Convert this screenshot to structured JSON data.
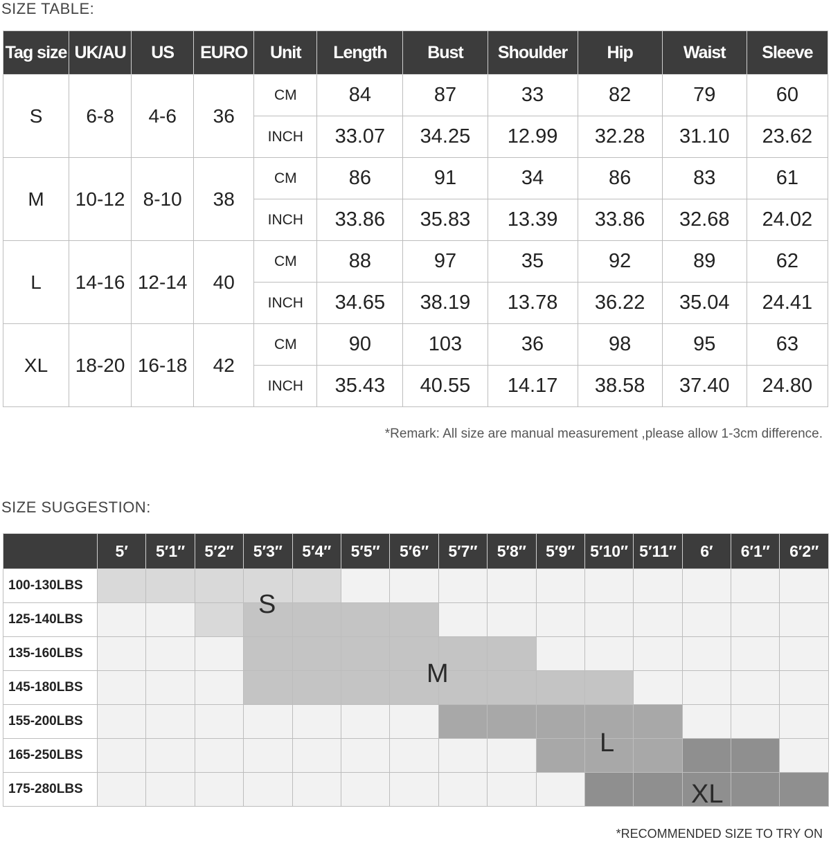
{
  "size_table": {
    "title": "SIZE TABLE:",
    "headers": [
      "Tag size",
      "UK/AU",
      "US",
      "EURO",
      "Unit",
      "Length",
      "Bust",
      "Shoulder",
      "Hip",
      "Waist",
      "Sleeve"
    ],
    "rows": [
      {
        "tag": "S",
        "ukau": "6-8",
        "us": "4-6",
        "euro": "36",
        "cm": [
          "84",
          "87",
          "33",
          "82",
          "79",
          "60"
        ],
        "inch": [
          "33.07",
          "34.25",
          "12.99",
          "32.28",
          "31.10",
          "23.62"
        ]
      },
      {
        "tag": "M",
        "ukau": "10-12",
        "us": "8-10",
        "euro": "38",
        "cm": [
          "86",
          "91",
          "34",
          "86",
          "83",
          "61"
        ],
        "inch": [
          "33.86",
          "35.83",
          "13.39",
          "33.86",
          "32.68",
          "24.02"
        ]
      },
      {
        "tag": "L",
        "ukau": "14-16",
        "us": "12-14",
        "euro": "40",
        "cm": [
          "88",
          "97",
          "35",
          "92",
          "89",
          "62"
        ],
        "inch": [
          "34.65",
          "38.19",
          "13.78",
          "36.22",
          "35.04",
          "24.41"
        ]
      },
      {
        "tag": "XL",
        "ukau": "18-20",
        "us": "16-18",
        "euro": "42",
        "cm": [
          "90",
          "103",
          "36",
          "98",
          "95",
          "63"
        ],
        "inch": [
          "35.43",
          "40.55",
          "14.17",
          "38.58",
          "37.40",
          "24.80"
        ]
      }
    ],
    "unit_cm": "CM",
    "unit_inch": "INCH",
    "remark": "*Remark: All size are manual measurement ,please allow 1-3cm difference."
  },
  "size_suggestion": {
    "title": "SIZE SUGGESTION:",
    "heights": [
      "5′",
      "5′1″",
      "5′2″",
      "5′3″",
      "5′4″",
      "5′5″",
      "5′6″",
      "5′7″",
      "5′8″",
      "5′9″",
      "5′10″",
      "5′11″",
      "6′",
      "6′1″",
      "6′2″"
    ],
    "weights": [
      "100-130LBS",
      "125-140LBS",
      "135-160LBS",
      "145-180LBS",
      "155-200LBS",
      "165-250LBS",
      "175-280LBS"
    ],
    "grid": [
      [
        "S",
        "S",
        "S",
        "S",
        "S",
        "",
        "",
        "",
        "",
        "",
        "",
        "",
        "",
        "",
        ""
      ],
      [
        "",
        "",
        "S",
        "M",
        "M",
        "M",
        "M",
        "",
        "",
        "",
        "",
        "",
        "",
        "",
        ""
      ],
      [
        "",
        "",
        "",
        "M",
        "M",
        "M",
        "M",
        "M",
        "M",
        "",
        "",
        "",
        "",
        "",
        ""
      ],
      [
        "",
        "",
        "",
        "M",
        "M",
        "M",
        "M",
        "M",
        "M",
        "M",
        "M",
        "",
        "",
        "",
        ""
      ],
      [
        "",
        "",
        "",
        "",
        "",
        "",
        "",
        "L",
        "L",
        "L",
        "L",
        "L",
        "",
        "",
        ""
      ],
      [
        "",
        "",
        "",
        "",
        "",
        "",
        "",
        "",
        "",
        "L",
        "L",
        "L",
        "XL",
        "XL",
        ""
      ],
      [
        "",
        "",
        "",
        "",
        "",
        "",
        "",
        "",
        "",
        "",
        "XL",
        "XL",
        "XL",
        "XL",
        "XL"
      ]
    ],
    "size_labels": {
      "s": "S",
      "m": "M",
      "l": "L",
      "xl": "XL"
    },
    "colors": {
      "S": "#d9d9d9",
      "M": "#c4c4c4",
      "L": "#a8a8a8",
      "XL": "#8f8f8f",
      "empty": "#f2f2f2",
      "header": "#3c3c3c"
    },
    "footnote": "*RECOMMENDED SIZE TO TRY ON"
  }
}
